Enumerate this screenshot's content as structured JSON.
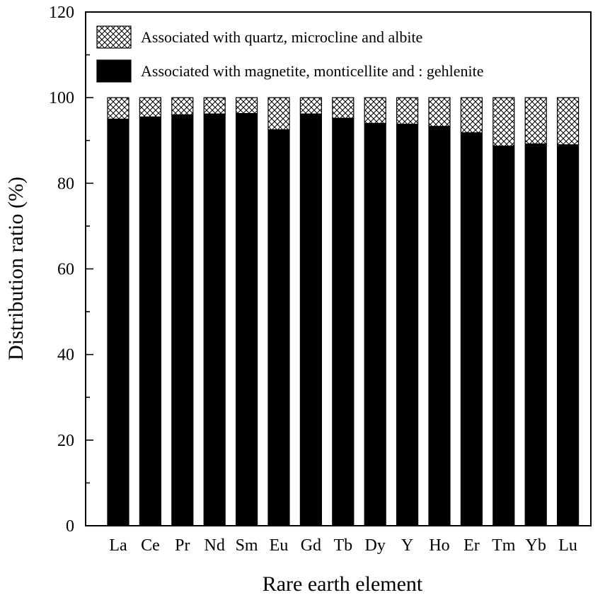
{
  "chart_data": {
    "type": "bar",
    "stacked": true,
    "xlabel": "Rare earth element",
    "ylabel": "Distribution ratio (%)",
    "ylim": [
      0,
      120
    ],
    "yticks": [
      "0",
      "20",
      "40",
      "60",
      "80",
      "100",
      "120"
    ],
    "categories": [
      "La",
      "Ce",
      "Pr",
      "Nd",
      "Sm",
      "Eu",
      "Gd",
      "Tb",
      "Dy",
      "Y",
      "Ho",
      "Er",
      "Tm",
      "Yb",
      "Lu"
    ],
    "series": [
      {
        "name": "Associated with magnetite, monticellite and : gehlenite",
        "fill": "solid",
        "color": "#000000",
        "values": [
          95.0,
          95.5,
          96.0,
          96.2,
          96.3,
          92.5,
          96.2,
          95.2,
          94.0,
          93.8,
          93.3,
          91.8,
          88.7,
          89.2,
          89.0
        ]
      },
      {
        "name": "Associated with quartz, microcline and albite",
        "fill": "crosshatch",
        "color": "#000000",
        "values": [
          5.0,
          4.5,
          4.0,
          3.8,
          3.7,
          7.5,
          3.8,
          4.8,
          6.0,
          6.2,
          6.7,
          8.2,
          11.3,
          10.8,
          11.0
        ]
      }
    ],
    "legend_position": "top-left",
    "legend_order": [
      1,
      0
    ],
    "grid": false
  }
}
